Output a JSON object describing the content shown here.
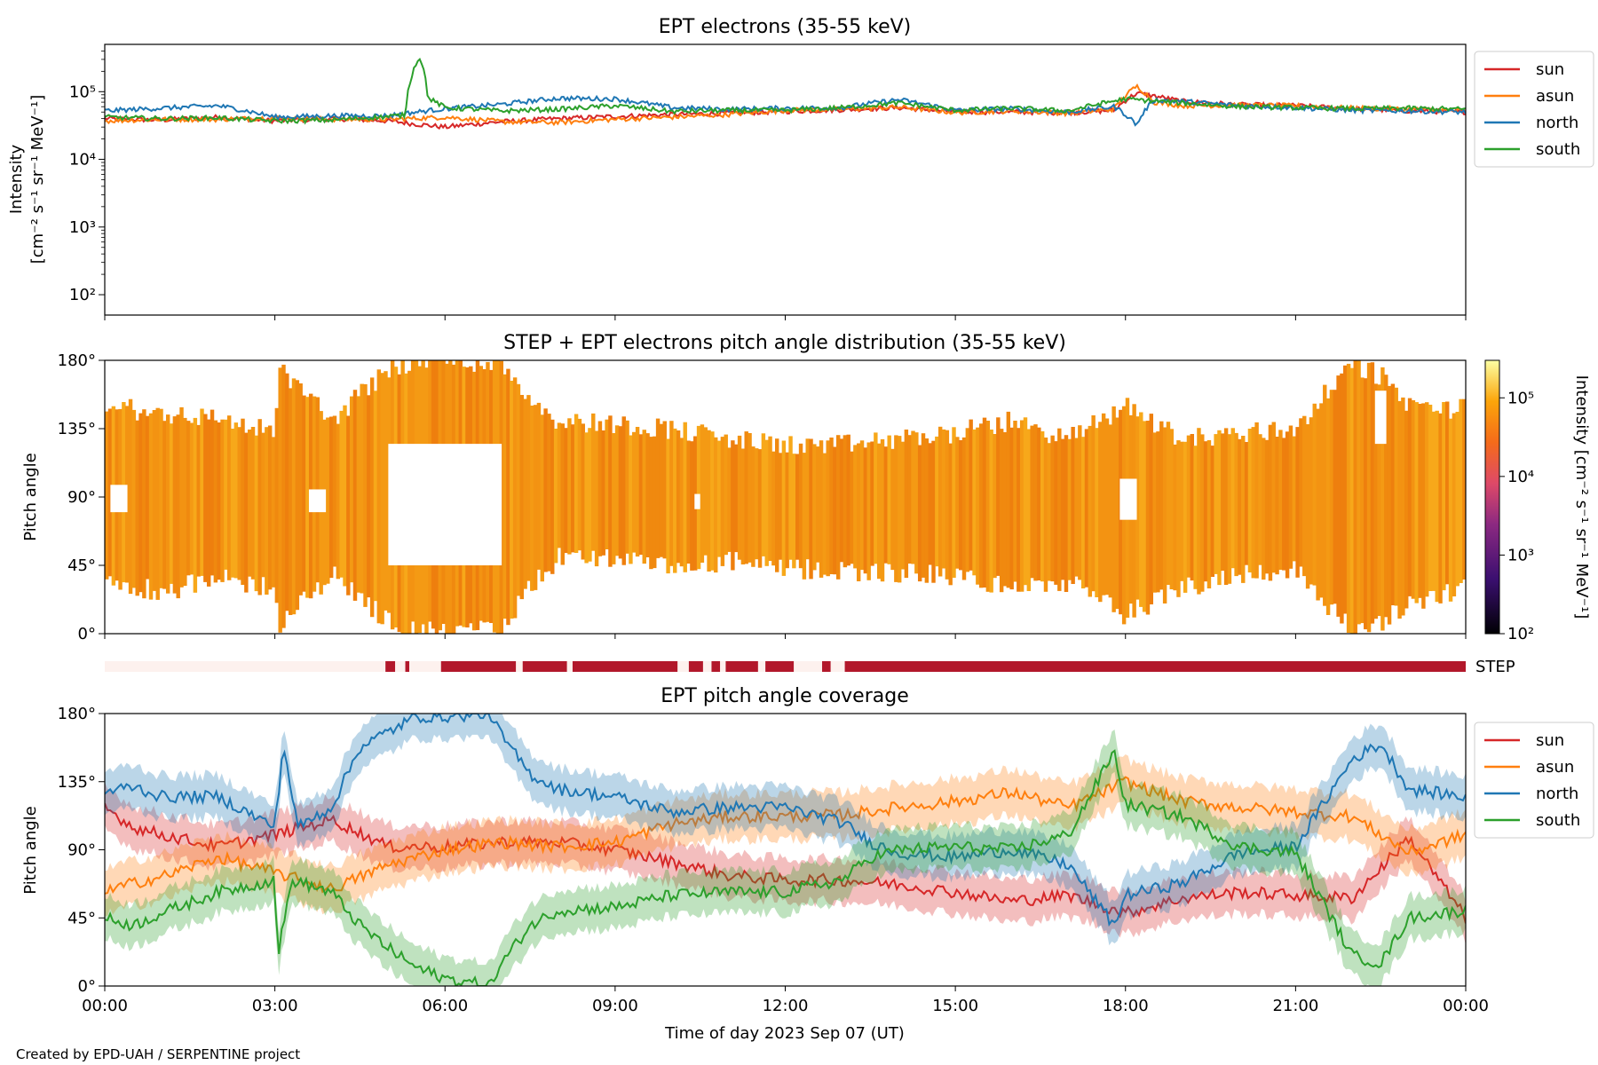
{
  "colors": {
    "sun": "#d62728",
    "asun": "#ff7f0e",
    "north": "#1f77b4",
    "south": "#2ca02c",
    "step_bar": "#b2182b",
    "step_empty": "#fdf1ee",
    "pad_fill": "#f39312"
  },
  "credit": "Created by EPD-UAH / SERPENTINE project",
  "chart_data": [
    {
      "id": "intensity",
      "type": "line",
      "title": "EPT electrons (35-55 keV)",
      "ylabel_line1": "Intensity",
      "ylabel_line2": "[cm⁻² s⁻¹ sr⁻¹ MeV⁻¹]",
      "yscale": "log",
      "ylim": [
        50,
        500000
      ],
      "ytick_labels": [
        {
          "v": 100,
          "label": "10²"
        },
        {
          "v": 1000,
          "label": "10³"
        },
        {
          "v": 10000,
          "label": "10⁴"
        },
        {
          "v": 100000,
          "label": "10⁵"
        }
      ],
      "xlim": [
        0,
        24
      ],
      "legend": "right-outside-top",
      "series": [
        {
          "name": "sun",
          "x": [
            0,
            1,
            2,
            3,
            4,
            5,
            5.5,
            6,
            7,
            8,
            9,
            10,
            11,
            12,
            13,
            14,
            15,
            16,
            17,
            17.8,
            18.2,
            19,
            20,
            21,
            22,
            23,
            24
          ],
          "y": [
            40000,
            38000,
            42000,
            37000,
            40000,
            37000,
            33000,
            30000,
            36000,
            40000,
            43000,
            46000,
            48000,
            51000,
            54000,
            58000,
            50000,
            50000,
            49000,
            53000,
            95000,
            72000,
            64000,
            62000,
            56000,
            52000,
            50000
          ]
        },
        {
          "name": "asun",
          "x": [
            0,
            1,
            2,
            3,
            4,
            5,
            6,
            7,
            8,
            9,
            10,
            11,
            12,
            13,
            14,
            15,
            16,
            17,
            17.8,
            18.2,
            18.5,
            19,
            20,
            21,
            22,
            23,
            24
          ],
          "y": [
            37000,
            39000,
            39000,
            41000,
            39000,
            39000,
            42000,
            36000,
            35000,
            39000,
            42000,
            46000,
            53000,
            55000,
            59000,
            49000,
            52000,
            48000,
            55000,
            120000,
            70000,
            62000,
            63000,
            62000,
            57000,
            55000,
            52000
          ]
        },
        {
          "name": "north",
          "x": [
            0,
            1,
            2,
            3,
            4,
            5,
            6,
            7,
            8,
            9,
            10,
            11,
            12,
            13,
            14,
            15,
            16,
            17,
            17.8,
            18.2,
            18.5,
            19,
            20,
            21,
            22,
            23,
            24
          ],
          "y": [
            52000,
            57000,
            62000,
            42000,
            44000,
            44000,
            56000,
            65000,
            80000,
            78000,
            58000,
            55000,
            57000,
            58000,
            76000,
            53000,
            56000,
            50000,
            60000,
            32000,
            75000,
            72000,
            62000,
            58000,
            53000,
            52000,
            50000
          ]
        },
        {
          "name": "south",
          "x": [
            0,
            1,
            2,
            3,
            4,
            5,
            5.3,
            5.55,
            5.7,
            6,
            7,
            8,
            9,
            10,
            11,
            12,
            13,
            14,
            15,
            16,
            17,
            18,
            19,
            20,
            21,
            22,
            23,
            24
          ],
          "y": [
            42000,
            40000,
            41000,
            37000,
            38000,
            43000,
            45000,
            330000,
            80000,
            58000,
            52000,
            55000,
            62000,
            51000,
            53000,
            53000,
            58000,
            68000,
            53000,
            57000,
            52000,
            78000,
            68000,
            60000,
            58000,
            56000,
            57000,
            55000
          ]
        }
      ]
    },
    {
      "id": "pad",
      "type": "heatmap",
      "title": "STEP + EPT electrons pitch angle distribution (35-55 keV)",
      "ylabel": "Pitch angle",
      "ylim": [
        0,
        180
      ],
      "ytick_labels": [
        "0°",
        "45°",
        "90°",
        "135°",
        "180°"
      ],
      "xlim": [
        0,
        24
      ],
      "colorbar": {
        "label": "Intensity [cm⁻² s⁻¹ sr⁻¹ MeV⁻¹]",
        "scale": "log",
        "range": [
          100,
          300000
        ],
        "tick_labels": [
          {
            "v": 100,
            "label": "10²"
          },
          {
            "v": 1000,
            "label": "10³"
          },
          {
            "v": 10000,
            "label": "10⁴"
          },
          {
            "v": 100000,
            "label": "10⁵"
          }
        ]
      },
      "coverage": {
        "t": [
          0,
          1,
          2,
          3,
          3.1,
          4,
          5,
          5.5,
          6,
          7,
          7.5,
          8,
          9,
          10,
          11,
          12,
          13,
          14,
          15,
          16,
          17,
          18,
          19,
          20,
          21,
          22,
          22.5,
          23,
          24
        ],
        "low_deg": [
          35,
          28,
          36,
          30,
          5,
          40,
          8,
          2,
          0,
          3,
          30,
          50,
          50,
          42,
          48,
          42,
          42,
          40,
          38,
          30,
          34,
          12,
          30,
          40,
          42,
          2,
          6,
          20,
          30
        ],
        "high_deg": [
          150,
          145,
          142,
          132,
          175,
          140,
          175,
          180,
          180,
          178,
          155,
          140,
          138,
          135,
          128,
          124,
          124,
          128,
          132,
          140,
          128,
          150,
          128,
          132,
          135,
          178,
          170,
          150,
          148
        ]
      },
      "gaps_deg": [
        {
          "t0": 0.1,
          "t1": 0.4,
          "lo": 80,
          "hi": 98
        },
        {
          "t0": 3.6,
          "t1": 3.9,
          "lo": 80,
          "hi": 95
        },
        {
          "t0": 5.0,
          "t1": 7.0,
          "lo": 45,
          "hi": 125
        },
        {
          "t0": 10.4,
          "t1": 10.5,
          "lo": 82,
          "hi": 92
        },
        {
          "t0": 17.9,
          "t1": 18.2,
          "lo": 75,
          "hi": 102
        },
        {
          "t0": 22.4,
          "t1": 22.6,
          "lo": 125,
          "hi": 160
        }
      ]
    },
    {
      "id": "step",
      "type": "bar",
      "label": "STEP",
      "xlim": [
        0,
        24
      ],
      "on_intervals_hours": [
        [
          4.95,
          5.12
        ],
        [
          5.3,
          5.37
        ],
        [
          5.93,
          7.25
        ],
        [
          7.37,
          8.15
        ],
        [
          8.25,
          10.1
        ],
        [
          10.3,
          10.55
        ],
        [
          10.7,
          10.85
        ],
        [
          10.95,
          11.52
        ],
        [
          11.65,
          12.15
        ],
        [
          12.65,
          12.8
        ],
        [
          13.05,
          24
        ]
      ]
    },
    {
      "id": "coverage",
      "type": "area",
      "title": "EPT pitch angle coverage",
      "ylabel": "Pitch angle",
      "xlabel": "Time of day 2023 Sep 07 (UT)",
      "ylim": [
        0,
        180
      ],
      "ytick_labels": [
        "0°",
        "45°",
        "90°",
        "135°",
        "180°"
      ],
      "xtick_labels": [
        "00:00",
        "03:00",
        "06:00",
        "09:00",
        "12:00",
        "15:00",
        "18:00",
        "21:00",
        "00:00"
      ],
      "xlim": [
        0,
        24
      ],
      "legend": "right-outside-top",
      "series": [
        {
          "name": "sun",
          "x": [
            0,
            0.5,
            1,
            2,
            3,
            4,
            5,
            6,
            7,
            8,
            9,
            10,
            11,
            12,
            13,
            14,
            15,
            16,
            17,
            18,
            19,
            20,
            21,
            22,
            23,
            24
          ],
          "y": [
            118,
            105,
            100,
            92,
            100,
            110,
            92,
            92,
            95,
            95,
            90,
            82,
            73,
            70,
            70,
            67,
            62,
            56,
            60,
            48,
            58,
            62,
            60,
            58,
            98,
            45
          ],
          "band": 14
        },
        {
          "name": "asun",
          "x": [
            0,
            0.5,
            1,
            2,
            3,
            4,
            5,
            6,
            7,
            8,
            9,
            10,
            11,
            12,
            13,
            14,
            15,
            16,
            17,
            18,
            19,
            20,
            21,
            22,
            23,
            24
          ],
          "y": [
            62,
            68,
            72,
            85,
            75,
            64,
            80,
            90,
            95,
            92,
            95,
            107,
            112,
            112,
            113,
            118,
            122,
            128,
            118,
            135,
            122,
            118,
            115,
            112,
            88,
            100
          ],
          "band": 15
        },
        {
          "name": "north",
          "x": [
            0,
            0.5,
            1,
            2,
            3,
            3.15,
            3.4,
            4,
            4.5,
            5,
            5.5,
            6,
            6.8,
            7,
            7.5,
            8,
            9,
            10,
            11,
            12,
            13,
            13.5,
            14,
            15,
            16,
            17,
            17.8,
            18,
            19,
            20,
            21,
            22,
            22.5,
            23,
            24
          ],
          "y": [
            128,
            132,
            125,
            125,
            105,
            160,
            105,
            118,
            158,
            168,
            178,
            178,
            180,
            165,
            140,
            130,
            125,
            115,
            118,
            118,
            108,
            95,
            88,
            85,
            90,
            80,
            40,
            60,
            68,
            88,
            92,
            150,
            160,
            130,
            125
          ],
          "band": 14
        },
        {
          "name": "south",
          "x": [
            0,
            0.5,
            1,
            2,
            3,
            3.05,
            3.3,
            4,
            4.5,
            5,
            5.5,
            6,
            6.8,
            7,
            7.5,
            8,
            9,
            10,
            11,
            12,
            13,
            13.5,
            14,
            15,
            16,
            17,
            17.8,
            18,
            19,
            20,
            21,
            22,
            22.5,
            23,
            24
          ],
          "y": [
            45,
            40,
            48,
            62,
            70,
            20,
            70,
            62,
            40,
            25,
            12,
            5,
            0,
            15,
            40,
            50,
            52,
            60,
            62,
            62,
            70,
            85,
            90,
            92,
            90,
            100,
            155,
            120,
            112,
            92,
            88,
            20,
            15,
            45,
            50
          ],
          "band": 14
        }
      ]
    }
  ]
}
